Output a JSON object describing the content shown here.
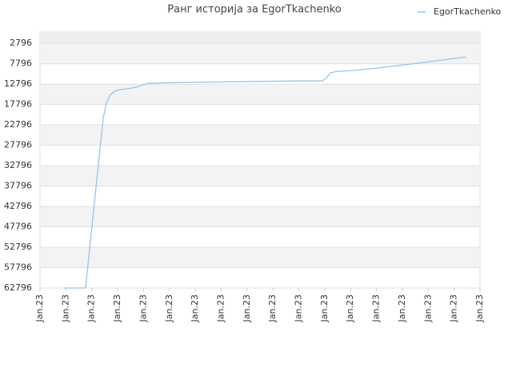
{
  "chart_data": {
    "type": "line",
    "title": "Ранг историја за EgorTkachenko",
    "legend_position": "top-right",
    "grid": true,
    "ylim": [
      62796,
      0
    ],
    "yticks": [
      2796,
      7796,
      12796,
      17796,
      22796,
      27796,
      32796,
      37796,
      42796,
      47796,
      52796,
      57796,
      62796
    ],
    "xlim": [
      0,
      17
    ],
    "xticks": [
      {
        "value": 0,
        "label": "Jan.23"
      },
      {
        "value": 1,
        "label": "Jan.23"
      },
      {
        "value": 2,
        "label": "Jan.23"
      },
      {
        "value": 3,
        "label": "Jan.23"
      },
      {
        "value": 4,
        "label": "Jan.23"
      },
      {
        "value": 5,
        "label": "Jan.23"
      },
      {
        "value": 6,
        "label": "Jan.23"
      },
      {
        "value": 7,
        "label": "Jan.23"
      },
      {
        "value": 8,
        "label": "Jan.23"
      },
      {
        "value": 9,
        "label": "Jan.23"
      },
      {
        "value": 10,
        "label": "Jan.23"
      },
      {
        "value": 11,
        "label": "Jan.23"
      },
      {
        "value": 12,
        "label": "Jan.23"
      },
      {
        "value": 13,
        "label": "Jan.23"
      },
      {
        "value": 14,
        "label": "Jan.23"
      },
      {
        "value": 15,
        "label": "Jan.23"
      },
      {
        "value": 16,
        "label": "Jan.23"
      },
      {
        "value": 17,
        "label": "Jan.23"
      }
    ],
    "x": [
      0.93,
      1.76,
      2.44,
      2.57,
      2.72,
      2.94,
      3.09,
      3.71,
      3.96,
      4.2,
      5.32,
      7.57,
      9.83,
      10.91,
      11.07,
      11.22,
      11.44,
      12.06,
      12.98,
      14.53,
      16.45
    ],
    "series": [
      {
        "name": "EgorTkachenko",
        "color": "#94c5ee",
        "values": [
          62796,
          62796,
          21229,
          17306,
          15345,
          14365,
          14169,
          13580,
          12992,
          12600,
          12404,
          12208,
          12012,
          12012,
          11227,
          10051,
          9659,
          9463,
          8875,
          7698,
          6129
        ]
      }
    ]
  }
}
